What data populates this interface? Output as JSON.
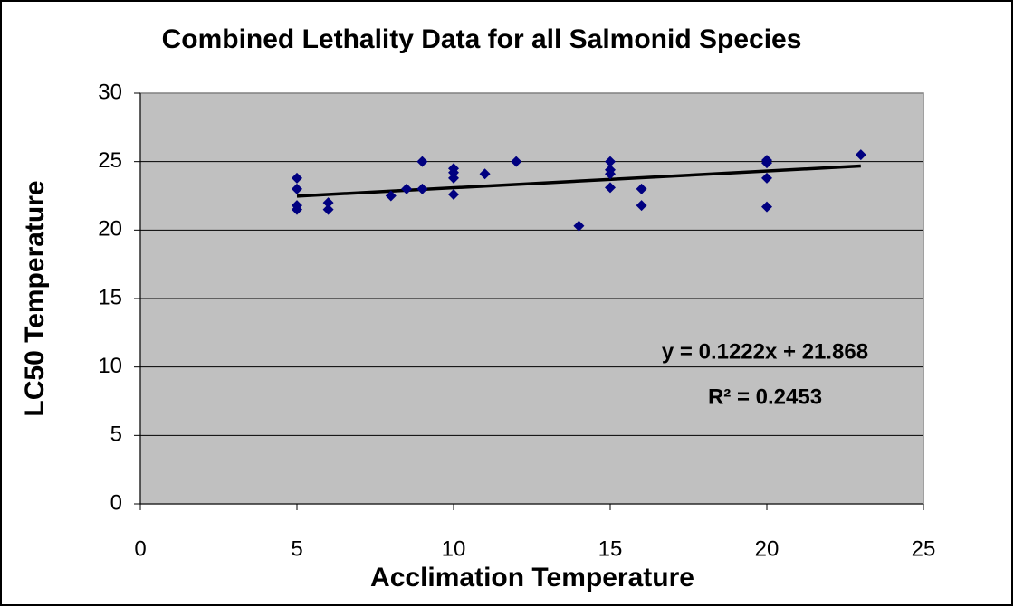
{
  "chart_data": {
    "type": "scatter",
    "title": "Combined Lethality Data for all Salmonid Species",
    "x_label": "Acclimation Temperature",
    "y_label": "LC50 Temperature",
    "x": [
      5,
      5,
      5,
      5,
      6,
      6,
      8,
      8.5,
      9,
      9,
      10,
      10,
      10,
      10,
      11,
      12,
      14,
      15,
      15,
      15,
      15,
      16,
      16,
      20,
      20,
      20,
      20,
      23
    ],
    "values": [
      23.8,
      23.0,
      21.8,
      21.5,
      22.0,
      21.5,
      22.5,
      23.0,
      25.0,
      23.0,
      24.5,
      24.2,
      23.8,
      22.6,
      24.1,
      25.0,
      20.3,
      25.0,
      24.4,
      24.1,
      23.1,
      23.0,
      21.8,
      25.1,
      24.9,
      23.8,
      21.7,
      25.5
    ],
    "color": "#000080",
    "xlim": [
      0,
      25
    ],
    "xticks": [
      0,
      5,
      10,
      15,
      20,
      25
    ],
    "ylim": [
      0,
      30
    ],
    "yticks": [
      0,
      5,
      10,
      15,
      20,
      25,
      30
    ],
    "grid": true,
    "trendline": {
      "slope": 0.1222,
      "intercept": 21.868,
      "equation": "y = 0.1222x + 21.868",
      "r_squared": "R² = 0.2453"
    }
  }
}
